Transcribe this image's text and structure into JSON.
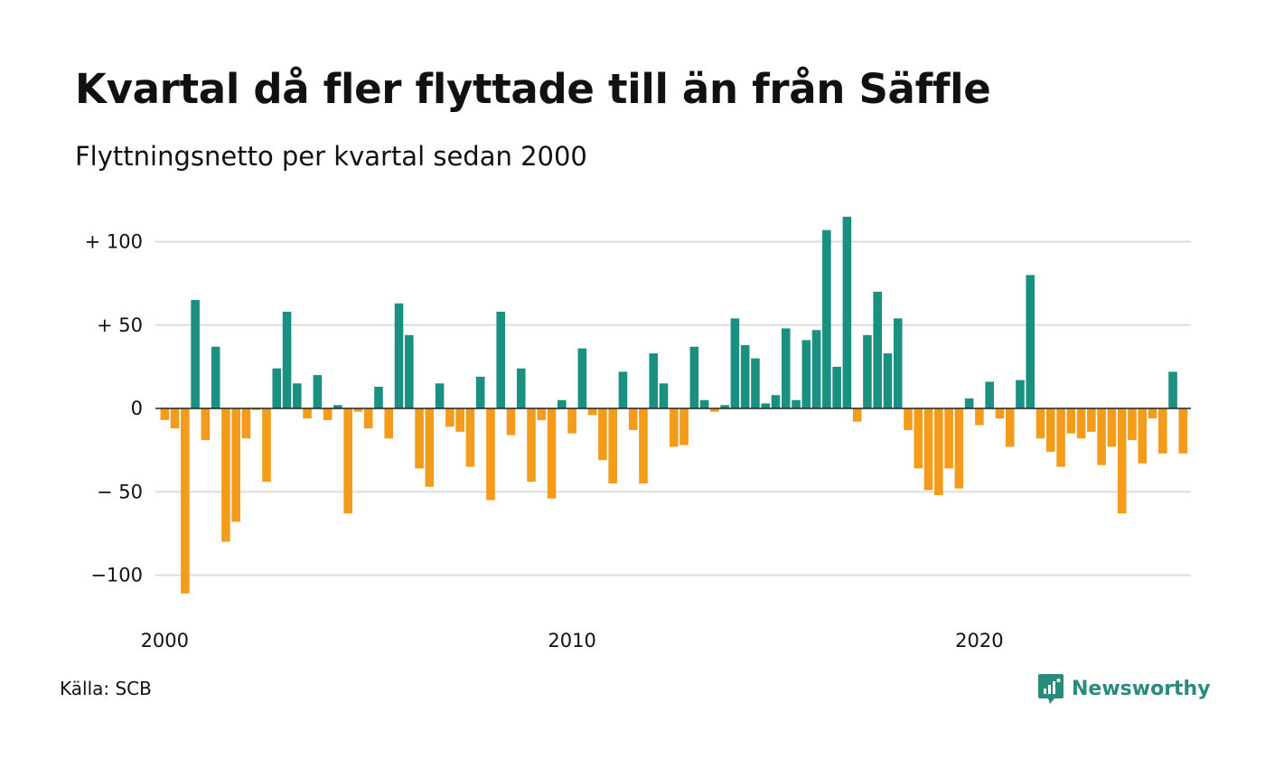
{
  "header": {
    "title": "Kvartal då fler flyttade till än från Säffle",
    "subtitle": "Flyttningsnetto per kvartal sedan 2000"
  },
  "footer": {
    "source": "Källa: SCB",
    "brand": "Newsworthy"
  },
  "colors": {
    "positive": "#1a9080",
    "negative": "#f39c1c",
    "grid": "#dddddd",
    "zero_line": "#222222",
    "brand": "#2a8a7c"
  },
  "icons": {
    "brand_logo": "newsworthy-chart-bubble-icon"
  },
  "chart_data": {
    "type": "bar",
    "xlabel": "",
    "ylabel": "",
    "ylim": [
      -120,
      120
    ],
    "yticks": [
      {
        "value": 100,
        "label": "+ 100"
      },
      {
        "value": 50,
        "label": "+  50"
      },
      {
        "value": 0,
        "label": "0"
      },
      {
        "value": -50,
        "label": "− 50"
      },
      {
        "value": -100,
        "label": "−100"
      }
    ],
    "xticks": [
      {
        "quarter_index": 0,
        "label": "2000"
      },
      {
        "quarter_index": 40,
        "label": "2010"
      },
      {
        "quarter_index": 80,
        "label": "2020"
      }
    ],
    "first_period": "2000 Q1",
    "grid": true,
    "legend": "none",
    "values": [
      -7,
      -12,
      -111,
      65,
      -19,
      37,
      -80,
      -68,
      -18,
      -1,
      -44,
      24,
      58,
      15,
      -6,
      20,
      -7,
      2,
      -63,
      -2,
      -12,
      13,
      -18,
      63,
      44,
      -36,
      -47,
      15,
      -11,
      -14,
      -35,
      19,
      -55,
      58,
      -16,
      24,
      -44,
      -7,
      -54,
      5,
      -15,
      36,
      -4,
      -31,
      -45,
      22,
      -13,
      -45,
      33,
      15,
      -23,
      -22,
      37,
      5,
      -2,
      2,
      54,
      38,
      30,
      3,
      8,
      48,
      5,
      41,
      47,
      107,
      25,
      115,
      -8,
      44,
      70,
      33,
      54,
      -13,
      -36,
      -49,
      -52,
      -36,
      -48,
      6,
      -10,
      16,
      -6,
      -23,
      17,
      80,
      -18,
      -26,
      -35,
      -15,
      -18,
      -14,
      -34,
      -23,
      -63,
      -19,
      -33,
      -6,
      -27,
      22,
      -27
    ]
  }
}
